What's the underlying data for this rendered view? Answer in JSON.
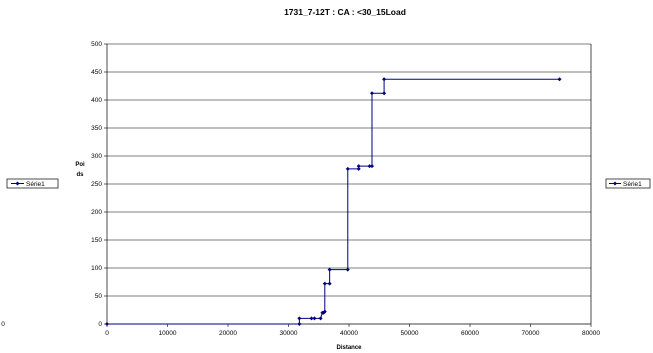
{
  "chart_data": {
    "type": "line",
    "title": "1731_7-12T : CA : <30_15Load",
    "xlabel": "Distance",
    "ylabel_line1": "Poi",
    "ylabel_line2": "ds",
    "xlim": [
      0,
      80000
    ],
    "ylim": [
      0,
      500
    ],
    "x_ticks": [
      "0",
      "10000",
      "20000",
      "30000",
      "40000",
      "50000",
      "60000",
      "70000",
      "80000"
    ],
    "y_ticks": [
      "0",
      "50",
      "100",
      "150",
      "200",
      "250",
      "300",
      "350",
      "400",
      "450",
      "500"
    ],
    "grid": "horizontal",
    "legend_placement": "right",
    "stray_left_tick": "0",
    "colors": {
      "series": "#000080",
      "grid": "#000000",
      "background": "#ffffff"
    },
    "series": [
      {
        "name": "Série1",
        "x": [
          0,
          31800,
          31800,
          33800,
          34300,
          35300,
          35600,
          35800,
          36000,
          36000,
          36800,
          36800,
          39800,
          39800,
          41600,
          41600,
          43400,
          43800,
          43800,
          45800,
          45800,
          74800
        ],
        "y": [
          0,
          0,
          10,
          10,
          10,
          10,
          20,
          20,
          22,
          72,
          72,
          97,
          97,
          277,
          277,
          282,
          282,
          282,
          412,
          412,
          437,
          437
        ]
      }
    ]
  },
  "legends": [
    {
      "label": "Série1"
    },
    {
      "label": "Série1"
    }
  ]
}
